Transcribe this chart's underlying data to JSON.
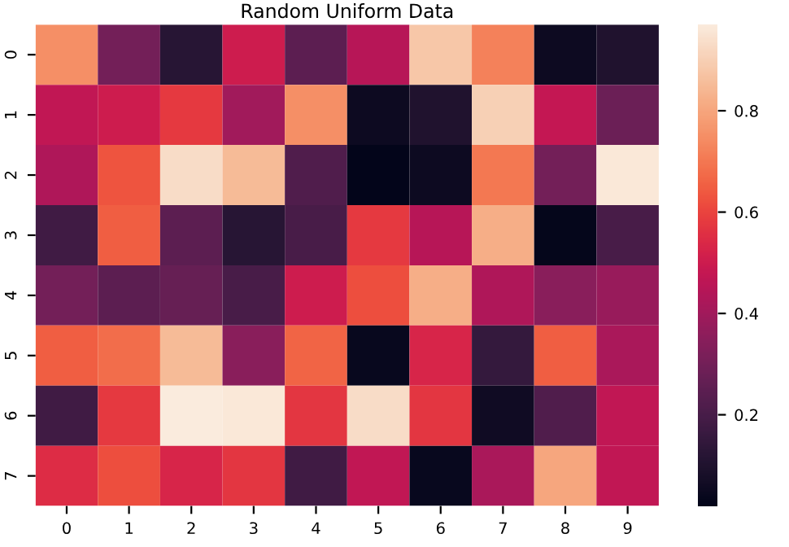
{
  "chart_data": {
    "type": "heatmap",
    "title": "Random Uniform Data",
    "categories": [
      "0",
      "1",
      "2",
      "3",
      "4",
      "5",
      "6",
      "7",
      "8",
      "9"
    ],
    "y_categories": [
      "0",
      "1",
      "2",
      "3",
      "4",
      "5",
      "6",
      "7"
    ],
    "cells": [
      [
        0.75,
        0.3,
        0.12,
        0.5,
        0.25,
        0.45,
        0.88,
        0.72,
        0.05,
        0.1
      ],
      [
        0.47,
        0.5,
        0.58,
        0.4,
        0.75,
        0.05,
        0.1,
        0.9,
        0.48,
        0.28
      ],
      [
        0.43,
        0.63,
        0.93,
        0.85,
        0.22,
        0.02,
        0.05,
        0.7,
        0.3,
        0.96
      ],
      [
        0.18,
        0.65,
        0.25,
        0.12,
        0.2,
        0.58,
        0.45,
        0.82,
        0.03,
        0.2
      ],
      [
        0.3,
        0.25,
        0.27,
        0.2,
        0.5,
        0.62,
        0.82,
        0.43,
        0.35,
        0.38
      ],
      [
        0.65,
        0.68,
        0.85,
        0.35,
        0.66,
        0.04,
        0.53,
        0.15,
        0.65,
        0.42
      ],
      [
        0.18,
        0.58,
        0.97,
        0.96,
        0.57,
        0.93,
        0.57,
        0.06,
        0.22,
        0.47
      ],
      [
        0.55,
        0.62,
        0.53,
        0.57,
        0.18,
        0.47,
        0.04,
        0.42,
        0.8,
        0.47
      ]
    ],
    "clim": [
      0.02,
      0.97
    ],
    "cticks": [
      0.2,
      0.4,
      0.6,
      0.8
    ]
  }
}
